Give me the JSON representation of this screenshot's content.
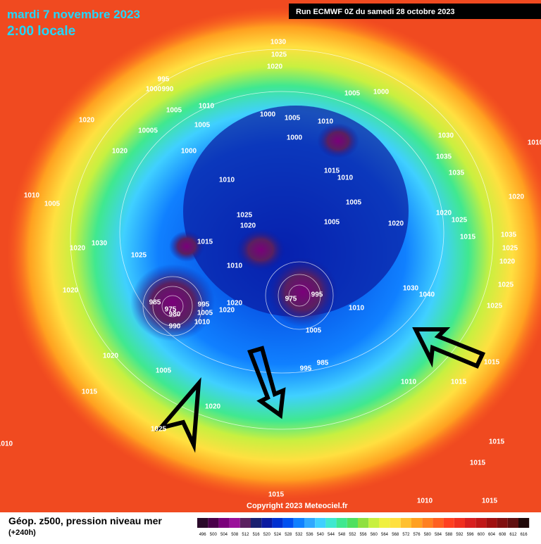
{
  "header": {
    "title": "mardi 7 novembre 2023",
    "subtitle": "2:00 locale",
    "run": "Run ECMWF 0Z du samedi 28 octobre 2023"
  },
  "map": {
    "copyright": "Copyright 2023 Meteociel.fr",
    "isobar_labels": [
      "1030",
      "1025",
      "1020",
      "995",
      "1000",
      "990",
      "1005",
      "1010",
      "1020",
      "1020",
      "10005",
      "1005",
      "1000",
      "1010",
      "1000",
      "1005",
      "1010",
      "1000",
      "1005",
      "1000",
      "1030",
      "1035",
      "1035",
      "1015",
      "1010",
      "1005",
      "1005",
      "1020",
      "1020",
      "1025",
      "1020",
      "1010",
      "1005",
      "1030",
      "1020",
      "1025",
      "1015",
      "1025",
      "1020",
      "1010",
      "1020",
      "985",
      "975",
      "980",
      "990",
      "995",
      "1005",
      "1020",
      "1010",
      "1020",
      "975",
      "995",
      "1010",
      "1005",
      "985",
      "995",
      "1020",
      "1005",
      "1015",
      "1020",
      "1025",
      "1010",
      "1030",
      "1040",
      "1025",
      "1025",
      "1020",
      "1015",
      "1010",
      "1015",
      "1015",
      "1015",
      "1015",
      "1010",
      "1015",
      "1015",
      "1010",
      "1015",
      "1035",
      "1025"
    ]
  },
  "footer": {
    "caption": "Géop. z500, pression niveau mer",
    "lead": "(+240h)",
    "scale": {
      "labels": [
        "496",
        "500",
        "504",
        "508",
        "512",
        "516",
        "520",
        "524",
        "528",
        "532",
        "536",
        "540",
        "544",
        "548",
        "552",
        "556",
        "560",
        "564",
        "568",
        "572",
        "576",
        "580",
        "584",
        "588",
        "592",
        "596",
        "600",
        "604",
        "608",
        "612",
        "616"
      ],
      "colors": [
        "#2a0a2a",
        "#4a004a",
        "#7a007a",
        "#9a109a",
        "#5a2060",
        "#1a2070",
        "#0a1aa0",
        "#0030d0",
        "#0050f0",
        "#1080ff",
        "#30a8ff",
        "#40d0ff",
        "#40e8d0",
        "#40e890",
        "#50e060",
        "#90e040",
        "#c8f040",
        "#f0f040",
        "#ffe040",
        "#ffc030",
        "#ffa020",
        "#ff8020",
        "#ff6020",
        "#ff4020",
        "#f03020",
        "#d82020",
        "#c01818",
        "#a01010",
        "#801010",
        "#601010",
        "#200808"
      ]
    }
  }
}
